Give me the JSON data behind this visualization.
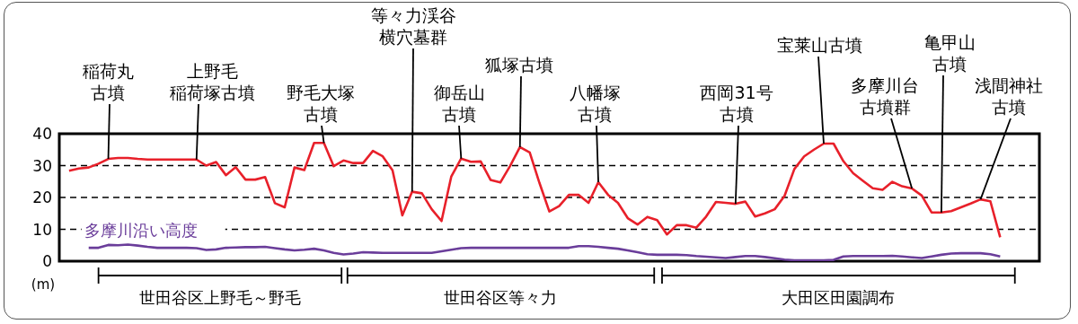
{
  "chart_data": {
    "type": "line",
    "ylabel": "(m)",
    "ylim": [
      0,
      40
    ],
    "yticks": [
      0,
      10,
      20,
      30,
      40
    ],
    "grid": "y",
    "tick_labels": "y",
    "line_style": "solid",
    "categories": [
      null,
      null,
      null,
      null,
      null,
      null,
      null,
      null,
      null,
      null,
      null,
      null,
      null,
      null,
      null,
      null,
      null,
      null,
      null,
      null,
      null,
      null,
      null,
      null,
      null,
      null,
      null,
      null,
      null,
      null,
      null,
      null,
      null,
      null,
      null,
      null,
      null,
      null,
      null,
      null,
      null,
      null,
      null,
      null,
      null,
      null,
      null,
      null,
      null,
      null,
      null,
      null,
      null,
      null,
      null,
      null,
      null,
      null,
      null,
      null,
      null,
      null,
      null,
      null,
      null,
      null,
      null,
      null,
      null,
      null,
      null,
      null,
      null,
      null,
      null,
      null,
      null,
      null,
      null,
      null,
      null,
      null,
      null,
      null,
      null,
      null,
      null,
      null,
      null,
      null,
      null,
      null,
      null,
      null,
      null,
      null
    ],
    "series": [
      {
        "color": "#e8202a",
        "values": [
          28.4,
          29.1,
          29.4,
          30.6,
          32.1,
          32.4,
          32.4,
          32.1,
          31.9,
          31.9,
          31.9,
          31.9,
          31.9,
          31.9,
          30,
          31.1,
          27,
          29.5,
          25.6,
          25.6,
          26.4,
          18.2,
          16.9,
          29.4,
          28.6,
          37.1,
          37.1,
          29.8,
          31.6,
          30.8,
          30.8,
          34.6,
          32.9,
          28.5,
          14.4,
          21.8,
          21.3,
          16.3,
          12.6,
          26.6,
          32.2,
          31.2,
          31.3,
          25.5,
          24.7,
          29.9,
          35.8,
          34.1,
          24.5,
          15.6,
          17.3,
          20.8,
          20.8,
          18.3,
          24.8,
          20.8,
          18.3,
          13.5,
          11.5,
          13.9,
          12.9,
          8.4,
          11.3,
          11.3,
          10.5,
          14,
          18.6,
          18.3,
          18,
          18.7,
          14,
          15,
          16.3,
          20.5,
          28.9,
          32.9,
          35,
          36.9,
          36.9,
          31.4,
          27.6,
          25.2,
          22.9,
          22.4,
          24.9,
          23.5,
          22.8,
          20.6,
          15.3,
          15.3,
          15.7,
          16.9,
          18.1,
          19.4,
          18.8,
          7.5
        ]
      },
      {
        "name": "多摩川沿い高度",
        "color": "#6a3d9a",
        "values": [
          null,
          null,
          4.2,
          4.2,
          5.1,
          5,
          5.2,
          4.9,
          4.5,
          4.2,
          4.2,
          4.2,
          4.2,
          4.1,
          3.5,
          3.7,
          4.2,
          4.3,
          4.4,
          4.4,
          4.5,
          4.1,
          3.7,
          3.4,
          3.6,
          3.9,
          3.4,
          2.6,
          2.1,
          2.4,
          2.8,
          2.7,
          2.6,
          2.6,
          2.6,
          2.6,
          2.6,
          2.6,
          3.1,
          3.6,
          4.1,
          4.2,
          4.2,
          4.2,
          4.2,
          4.2,
          4.2,
          4.2,
          4.2,
          4.2,
          4.2,
          4.2,
          4.7,
          4.7,
          4.5,
          4.2,
          3.9,
          3.4,
          2.8,
          2.2,
          2,
          2,
          2,
          1.9,
          1.6,
          1.4,
          1.2,
          1,
          1.3,
          1.6,
          1.6,
          1.3,
          0.9,
          0.5,
          0.3,
          0.3,
          0.3,
          0.3,
          0.4,
          1.5,
          1.6,
          1.6,
          1.6,
          1.6,
          1.7,
          1.5,
          1.2,
          1,
          1.5,
          2,
          2.4,
          2.5,
          2.5,
          2.5,
          2.2,
          1.5
        ]
      }
    ],
    "annotations": [
      {
        "text": "稲荷丸古墳",
        "y": 32.1
      },
      "上野毛稲荷塚古墳",
      {
        "text": "野毛大塚古墳",
        "y": 37.1
      },
      {
        "text": "等々力渓谷横穴墓群",
        "y": 21.8
      },
      {
        "text": "御岳山古墳",
        "y": 32.2
      },
      {
        "text": "狐塚古墳",
        "y": 35.8
      },
      {
        "text": "八幡塚古墳",
        "y": 24.8
      },
      {
        "text": "西岡31号古墳",
        "y": 18
      },
      {
        "text": "宝莱山古墳",
        "y": 36.9
      },
      "多摩川台古墳群",
      "亀甲山古墳",
      "浅間神社古墳",
      "世田谷区上野毛～野毛",
      "世田谷区等々力",
      "大田区田園調布"
    ]
  }
}
